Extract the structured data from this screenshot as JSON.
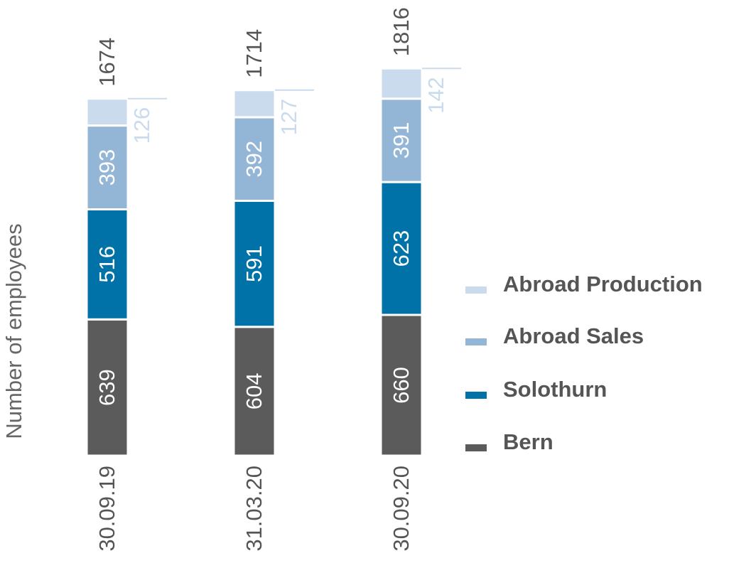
{
  "chart_data": {
    "type": "stacked_bar",
    "y_label": "Number of employees",
    "categories": [
      "30.09.19",
      "31.03.20",
      "30.09.20"
    ],
    "series": [
      {
        "name": "Bern",
        "color": "#5b5b5b",
        "values": [
          639,
          604,
          660
        ]
      },
      {
        "name": "Solothurn",
        "color": "#0072a8",
        "values": [
          516,
          591,
          623
        ]
      },
      {
        "name": "Abroad Sales",
        "color": "#94b6d6",
        "values": [
          393,
          392,
          391
        ]
      },
      {
        "name": "Abroad Production",
        "color": "#c9dbec",
        "values": [
          126,
          127,
          142
        ]
      }
    ],
    "totals": [
      1674,
      1714,
      1816
    ],
    "ylim": [
      0,
      2000
    ]
  }
}
